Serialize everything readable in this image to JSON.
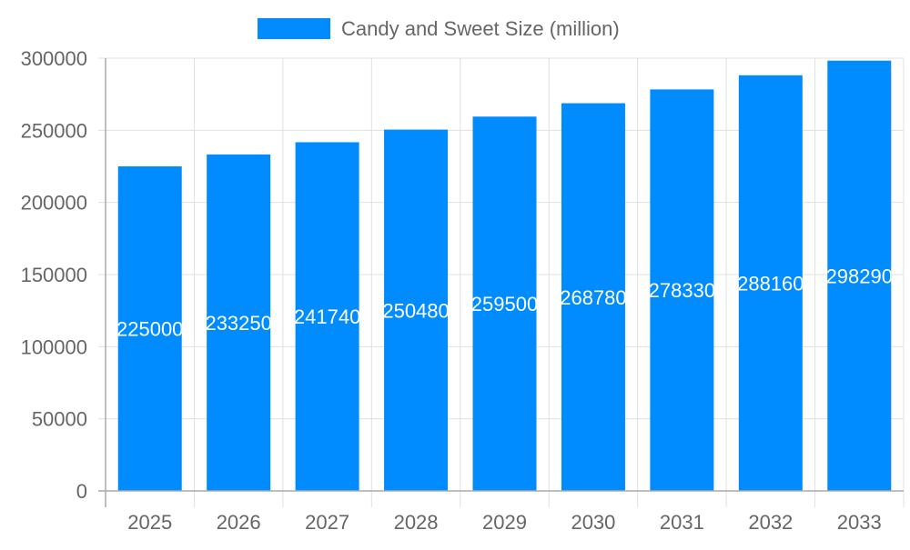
{
  "chart_data": {
    "type": "bar",
    "title": "",
    "xlabel": "",
    "ylabel": "",
    "categories": [
      "2025",
      "2026",
      "2027",
      "2028",
      "2029",
      "2030",
      "2031",
      "2032",
      "2033"
    ],
    "series": [
      {
        "name": "Candy and Sweet Size (million)",
        "values": [
          225000,
          233250,
          241740,
          250480,
          259500,
          268780,
          278330,
          288160,
          298290
        ],
        "color": "#008cff"
      }
    ],
    "ylim": [
      0,
      300000
    ],
    "yticks": [
      0,
      50000,
      100000,
      150000,
      200000,
      250000,
      300000
    ],
    "grid": true,
    "legend": "top",
    "data_labels": true
  }
}
